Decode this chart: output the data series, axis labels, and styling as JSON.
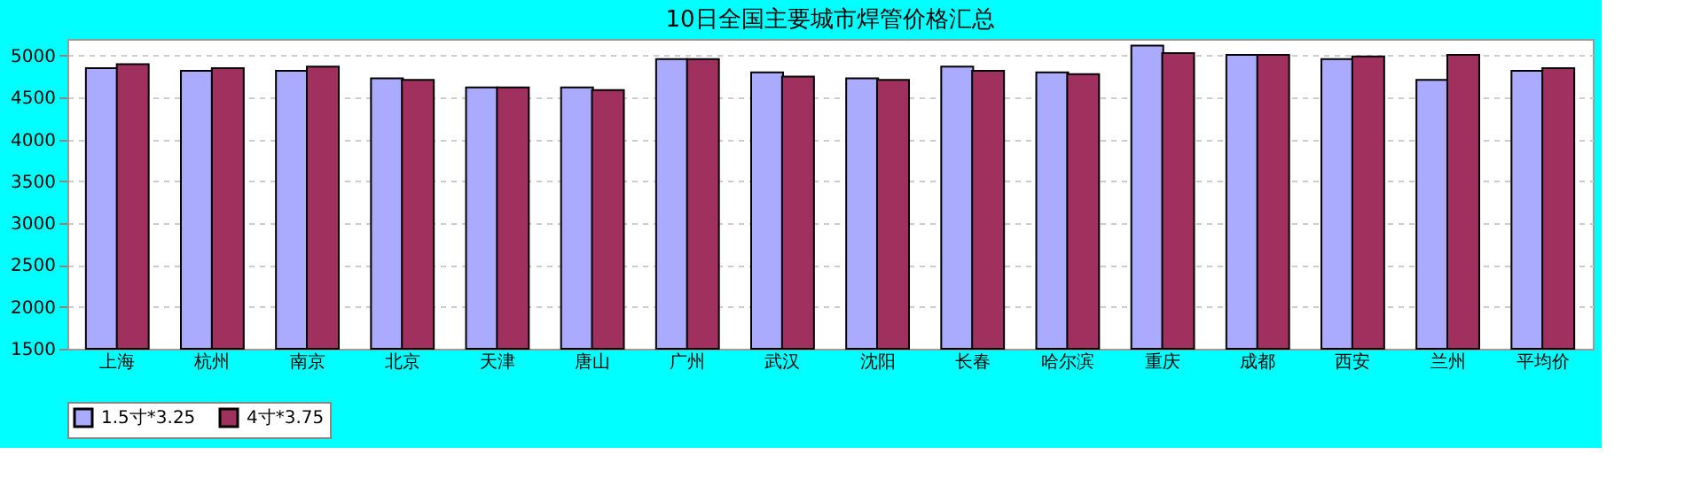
{
  "chart_data": {
    "type": "bar",
    "title": "10日全国主要城市焊管价格汇总",
    "categories": [
      "上海",
      "杭州",
      "南京",
      "北京",
      "天津",
      "唐山",
      "广州",
      "武汉",
      "沈阳",
      "长春",
      "哈尔滨",
      "重庆",
      "成都",
      "西安",
      "兰州",
      "平均价"
    ],
    "series": [
      {
        "name": "1.5寸*3.25",
        "color": "#aaaaff",
        "values": [
          4850,
          4820,
          4820,
          4730,
          4620,
          4620,
          4960,
          4800,
          4730,
          4870,
          4800,
          5120,
          5010,
          4960,
          4710,
          4820
        ]
      },
      {
        "name": "4寸*3.75",
        "color": "#a0305e",
        "values": [
          4900,
          4850,
          4870,
          4710,
          4620,
          4590,
          4960,
          4750,
          4710,
          4820,
          4780,
          5030,
          5010,
          4990,
          5010,
          4850
        ]
      }
    ],
    "ylim": [
      1500,
      5200
    ],
    "yticks": [
      1500,
      2000,
      2500,
      3000,
      3500,
      4000,
      4500,
      5000
    ],
    "grid": "y",
    "legend": "bottom"
  }
}
